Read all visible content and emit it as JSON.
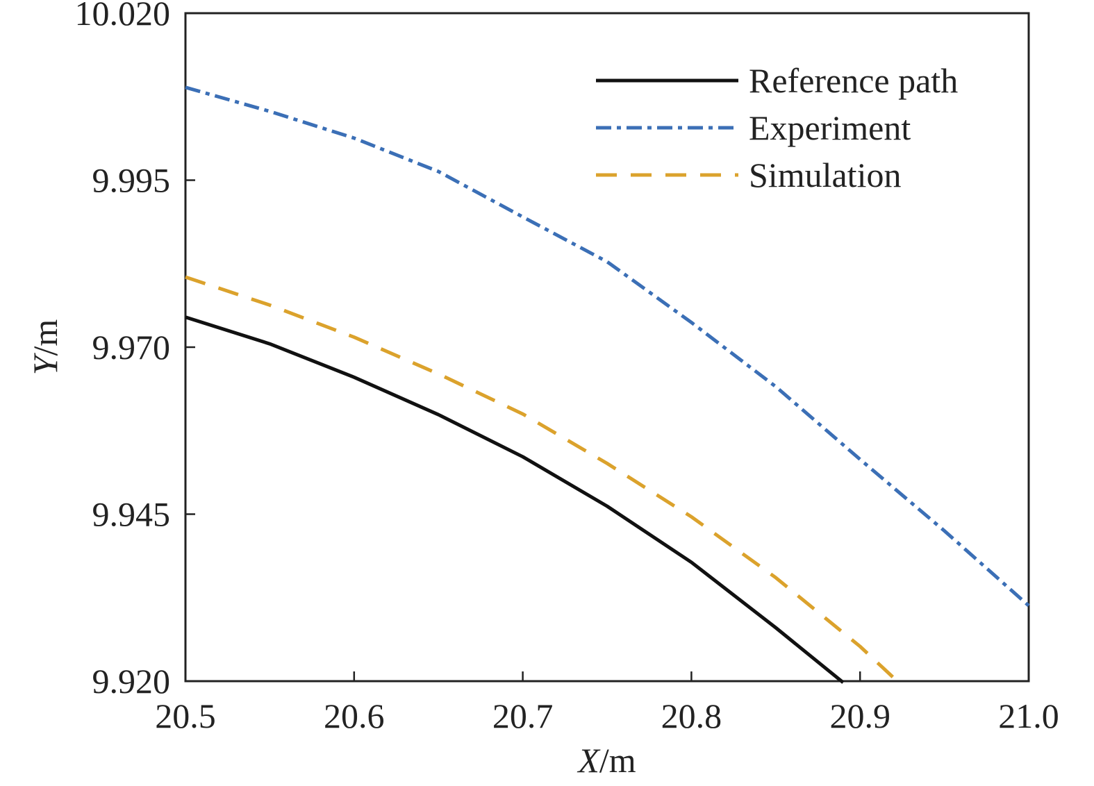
{
  "chart_data": {
    "type": "line",
    "xlabel": {
      "var": "X",
      "unit": "/m"
    },
    "ylabel": {
      "var": "Y",
      "unit": "/m"
    },
    "xlim": [
      20.5,
      21.0
    ],
    "ylim": [
      9.92,
      10.02
    ],
    "x_ticks": [
      "20.5",
      "20.6",
      "20.7",
      "20.8",
      "20.9",
      "21.0"
    ],
    "y_ticks": [
      "9.920",
      "9.945",
      "9.970",
      "9.995",
      "10.020"
    ],
    "grid": false,
    "legend_position": "top-right",
    "series": [
      {
        "name": "Reference path",
        "color": "#111111",
        "style": "solid",
        "x": [
          20.5,
          20.55,
          20.6,
          20.65,
          20.7,
          20.75,
          20.8,
          20.85,
          20.89
        ],
        "y": [
          9.9745,
          9.9705,
          9.9655,
          9.9599,
          9.9536,
          9.9462,
          9.9378,
          9.928,
          9.9198
        ]
      },
      {
        "name": "Experiment",
        "color": "#3b6fb6",
        "style": "dashdot",
        "x": [
          20.5,
          20.55,
          20.6,
          20.65,
          20.7,
          20.75,
          20.8,
          20.85,
          20.9,
          20.95,
          21.0
        ],
        "y": [
          10.0089,
          10.0053,
          10.0013,
          9.9963,
          9.9895,
          9.9828,
          9.9737,
          9.9641,
          9.9532,
          9.9425,
          9.9313
        ]
      },
      {
        "name": "Simulation",
        "color": "#dba22c",
        "style": "dashed",
        "x": [
          20.5,
          20.55,
          20.6,
          20.65,
          20.7,
          20.75,
          20.8,
          20.85,
          20.9,
          20.925
        ],
        "y": [
          9.9805,
          9.9763,
          9.9715,
          9.966,
          9.96,
          9.9526,
          9.9446,
          9.9355,
          9.9252,
          9.9193
        ]
      }
    ]
  }
}
